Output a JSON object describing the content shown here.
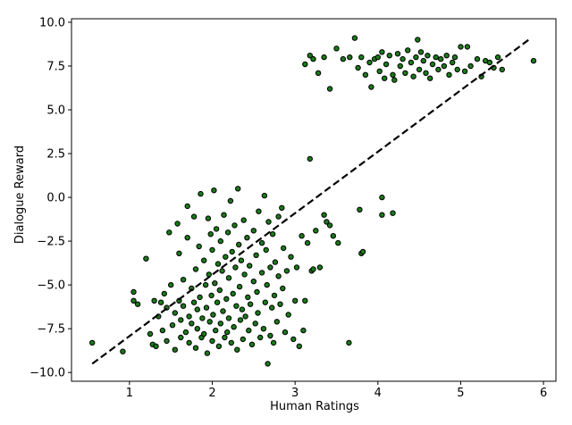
{
  "chart_data": {
    "type": "scatter",
    "title": "",
    "xlabel": "Human Ratings",
    "ylabel": "Dialogue Reward",
    "xlim": [
      0.3,
      6.15
    ],
    "ylim": [
      -10.5,
      10.2
    ],
    "xticks": [
      "1",
      "2",
      "3",
      "4",
      "5",
      "6"
    ],
    "yticks": [
      "10.0",
      "7.5",
      "5.0",
      "2.5",
      "0.0",
      "−2.5",
      "−5.0",
      "−7.5",
      "−10.0"
    ],
    "grid": false,
    "legend": "none",
    "point_color": "#1a7a1a",
    "line_color": "#000000",
    "fit_line": {
      "x": [
        0.55,
        5.85
      ],
      "y": [
        -9.5,
        9.1
      ]
    },
    "points": [
      [
        0.55,
        -8.3
      ],
      [
        0.92,
        -8.8
      ],
      [
        1.05,
        -5.4
      ],
      [
        1.05,
        -5.9
      ],
      [
        1.1,
        -6.1
      ],
      [
        1.2,
        -3.5
      ],
      [
        1.25,
        -7.8
      ],
      [
        1.28,
        -8.4
      ],
      [
        1.3,
        -5.9
      ],
      [
        1.32,
        -8.5
      ],
      [
        1.35,
        -6.8
      ],
      [
        1.38,
        -6.0
      ],
      [
        1.4,
        -7.6
      ],
      [
        1.42,
        -5.5
      ],
      [
        1.45,
        -8.2
      ],
      [
        1.45,
        -6.3
      ],
      [
        1.48,
        -2.0
      ],
      [
        1.5,
        -5.0
      ],
      [
        1.52,
        -7.3
      ],
      [
        1.55,
        -8.7
      ],
      [
        1.55,
        -6.6
      ],
      [
        1.58,
        -1.5
      ],
      [
        1.6,
        -3.2
      ],
      [
        1.6,
        -5.9
      ],
      [
        1.62,
        -7.0
      ],
      [
        1.62,
        -8.0
      ],
      [
        1.65,
        -6.2
      ],
      [
        1.65,
        -4.7
      ],
      [
        1.68,
        -7.7
      ],
      [
        1.7,
        -0.5
      ],
      [
        1.7,
        -2.3
      ],
      [
        1.72,
        -6.8
      ],
      [
        1.72,
        -8.3
      ],
      [
        1.75,
        -5.2
      ],
      [
        1.75,
        -7.2
      ],
      [
        1.78,
        -6.0
      ],
      [
        1.78,
        -1.1
      ],
      [
        1.8,
        -8.6
      ],
      [
        1.8,
        -4.1
      ],
      [
        1.82,
        -6.4
      ],
      [
        1.82,
        -7.5
      ],
      [
        1.84,
        -2.8
      ],
      [
        1.85,
        -5.7
      ],
      [
        1.86,
        0.2
      ],
      [
        1.87,
        -8.0
      ],
      [
        1.88,
        -6.9
      ],
      [
        1.9,
        -3.6
      ],
      [
        1.9,
        -7.8
      ],
      [
        1.92,
        -5.0
      ],
      [
        1.93,
        -6.3
      ],
      [
        1.94,
        -8.9
      ],
      [
        1.95,
        -1.2
      ],
      [
        1.96,
        -4.4
      ],
      [
        1.97,
        -7.1
      ],
      [
        1.98,
        -2.1
      ],
      [
        1.99,
        -5.6
      ],
      [
        2.0,
        -8.2
      ],
      [
        2.0,
        -3.0
      ],
      [
        2.01,
        -6.7
      ],
      [
        2.02,
        0.4
      ],
      [
        2.03,
        -4.9
      ],
      [
        2.04,
        -7.6
      ],
      [
        2.05,
        -1.8
      ],
      [
        2.06,
        -6.0
      ],
      [
        2.07,
        -3.8
      ],
      [
        2.08,
        -8.5
      ],
      [
        2.09,
        -5.3
      ],
      [
        2.1,
        -2.5
      ],
      [
        2.1,
        -7.2
      ],
      [
        2.12,
        -4.2
      ],
      [
        2.13,
        -6.5
      ],
      [
        2.14,
        -1.0
      ],
      [
        2.15,
        -8.0
      ],
      [
        2.16,
        -3.4
      ],
      [
        2.17,
        -5.8
      ],
      [
        2.18,
        -7.7
      ],
      [
        2.19,
        -2.0
      ],
      [
        2.2,
        -4.6
      ],
      [
        2.2,
        -6.9
      ],
      [
        2.22,
        -0.2
      ],
      [
        2.23,
        -8.3
      ],
      [
        2.24,
        -3.1
      ],
      [
        2.25,
        -5.5
      ],
      [
        2.26,
        -7.4
      ],
      [
        2.27,
        -1.6
      ],
      [
        2.28,
        -4.0
      ],
      [
        2.29,
        -6.2
      ],
      [
        2.3,
        -8.7
      ],
      [
        2.31,
        0.5
      ],
      [
        2.32,
        -2.7
      ],
      [
        2.33,
        -5.1
      ],
      [
        2.34,
        -7.0
      ],
      [
        2.35,
        -3.6
      ],
      [
        2.36,
        -6.4
      ],
      [
        2.37,
        -8.1
      ],
      [
        2.38,
        -1.3
      ],
      [
        2.39,
        -4.4
      ],
      [
        2.4,
        -6.8
      ],
      [
        2.42,
        -2.3
      ],
      [
        2.43,
        -5.7
      ],
      [
        2.44,
        -7.6
      ],
      [
        2.45,
        -3.9
      ],
      [
        2.46,
        -6.1
      ],
      [
        2.48,
        -8.4
      ],
      [
        2.5,
        -1.9
      ],
      [
        2.5,
        -4.8
      ],
      [
        2.52,
        -7.2
      ],
      [
        2.53,
        -3.3
      ],
      [
        2.54,
        -5.4
      ],
      [
        2.55,
        -6.6
      ],
      [
        2.56,
        -0.8
      ],
      [
        2.58,
        -8.0
      ],
      [
        2.6,
        -2.6
      ],
      [
        2.6,
        -4.3
      ],
      [
        2.62,
        -7.5
      ],
      [
        2.63,
        0.1
      ],
      [
        2.64,
        -6.0
      ],
      [
        2.65,
        -3.0
      ],
      [
        2.66,
        -5.0
      ],
      [
        2.67,
        -9.5
      ],
      [
        2.68,
        -1.4
      ],
      [
        2.7,
        -7.9
      ],
      [
        2.7,
        -4.0
      ],
      [
        2.72,
        -6.3
      ],
      [
        2.73,
        -2.1
      ],
      [
        2.74,
        -8.3
      ],
      [
        2.75,
        -5.6
      ],
      [
        2.76,
        -3.7
      ],
      [
        2.78,
        -7.1
      ],
      [
        2.8,
        -1.1
      ],
      [
        2.8,
        -4.5
      ],
      [
        2.82,
        -6.1
      ],
      [
        2.84,
        -0.6
      ],
      [
        2.85,
        -5.2
      ],
      [
        2.86,
        -2.9
      ],
      [
        2.88,
        -7.7
      ],
      [
        2.9,
        -4.2
      ],
      [
        2.92,
        -6.7
      ],
      [
        2.95,
        -3.4
      ],
      [
        2.98,
        -8.1
      ],
      [
        3.0,
        -5.9
      ],
      [
        3.02,
        -4.0
      ],
      [
        3.05,
        -8.5
      ],
      [
        3.08,
        -2.2
      ],
      [
        3.1,
        -7.6
      ],
      [
        3.12,
        -5.9
      ],
      [
        3.15,
        -2.6
      ],
      [
        3.18,
        2.2
      ],
      [
        3.2,
        -4.2
      ],
      [
        3.22,
        -4.1
      ],
      [
        3.25,
        -1.9
      ],
      [
        3.3,
        -4.0
      ],
      [
        3.35,
        -1.0
      ],
      [
        3.38,
        -1.4
      ],
      [
        3.42,
        -1.6
      ],
      [
        3.46,
        -2.2
      ],
      [
        3.52,
        -2.6
      ],
      [
        3.65,
        -8.3
      ],
      [
        3.78,
        -0.7
      ],
      [
        3.8,
        -3.2
      ],
      [
        3.82,
        -3.1
      ],
      [
        4.05,
        0.0
      ],
      [
        4.05,
        -1.0
      ],
      [
        4.18,
        -0.9
      ],
      [
        3.12,
        7.6
      ],
      [
        3.18,
        8.1
      ],
      [
        3.22,
        7.9
      ],
      [
        3.28,
        7.1
      ],
      [
        3.35,
        8.0
      ],
      [
        3.42,
        6.2
      ],
      [
        3.5,
        8.5
      ],
      [
        3.58,
        7.9
      ],
      [
        3.66,
        8.0
      ],
      [
        3.72,
        9.1
      ],
      [
        3.76,
        7.4
      ],
      [
        3.8,
        8.0
      ],
      [
        3.85,
        7.0
      ],
      [
        3.9,
        7.7
      ],
      [
        3.92,
        6.3
      ],
      [
        3.96,
        7.9
      ],
      [
        4.0,
        8.0
      ],
      [
        4.02,
        7.2
      ],
      [
        4.05,
        8.3
      ],
      [
        4.08,
        6.8
      ],
      [
        4.1,
        7.6
      ],
      [
        4.14,
        8.1
      ],
      [
        4.18,
        7.0
      ],
      [
        4.2,
        6.7
      ],
      [
        4.24,
        8.2
      ],
      [
        4.27,
        7.5
      ],
      [
        4.3,
        7.9
      ],
      [
        4.33,
        7.1
      ],
      [
        4.36,
        8.4
      ],
      [
        4.4,
        7.7
      ],
      [
        4.43,
        6.9
      ],
      [
        4.46,
        8.0
      ],
      [
        4.48,
        9.0
      ],
      [
        4.5,
        7.3
      ],
      [
        4.52,
        8.3
      ],
      [
        4.55,
        7.8
      ],
      [
        4.58,
        7.1
      ],
      [
        4.6,
        8.1
      ],
      [
        4.63,
        6.8
      ],
      [
        4.66,
        7.6
      ],
      [
        4.7,
        8.0
      ],
      [
        4.73,
        7.3
      ],
      [
        4.76,
        7.9
      ],
      [
        4.8,
        7.5
      ],
      [
        4.83,
        8.1
      ],
      [
        4.86,
        7.0
      ],
      [
        4.9,
        7.7
      ],
      [
        4.93,
        8.0
      ],
      [
        4.96,
        7.3
      ],
      [
        5.0,
        8.6
      ],
      [
        5.05,
        7.2
      ],
      [
        5.08,
        8.6
      ],
      [
        5.12,
        7.5
      ],
      [
        5.2,
        7.9
      ],
      [
        5.25,
        6.9
      ],
      [
        5.3,
        7.8
      ],
      [
        5.35,
        7.7
      ],
      [
        5.4,
        7.4
      ],
      [
        5.45,
        8.0
      ],
      [
        5.5,
        7.3
      ],
      [
        5.88,
        7.8
      ]
    ]
  }
}
